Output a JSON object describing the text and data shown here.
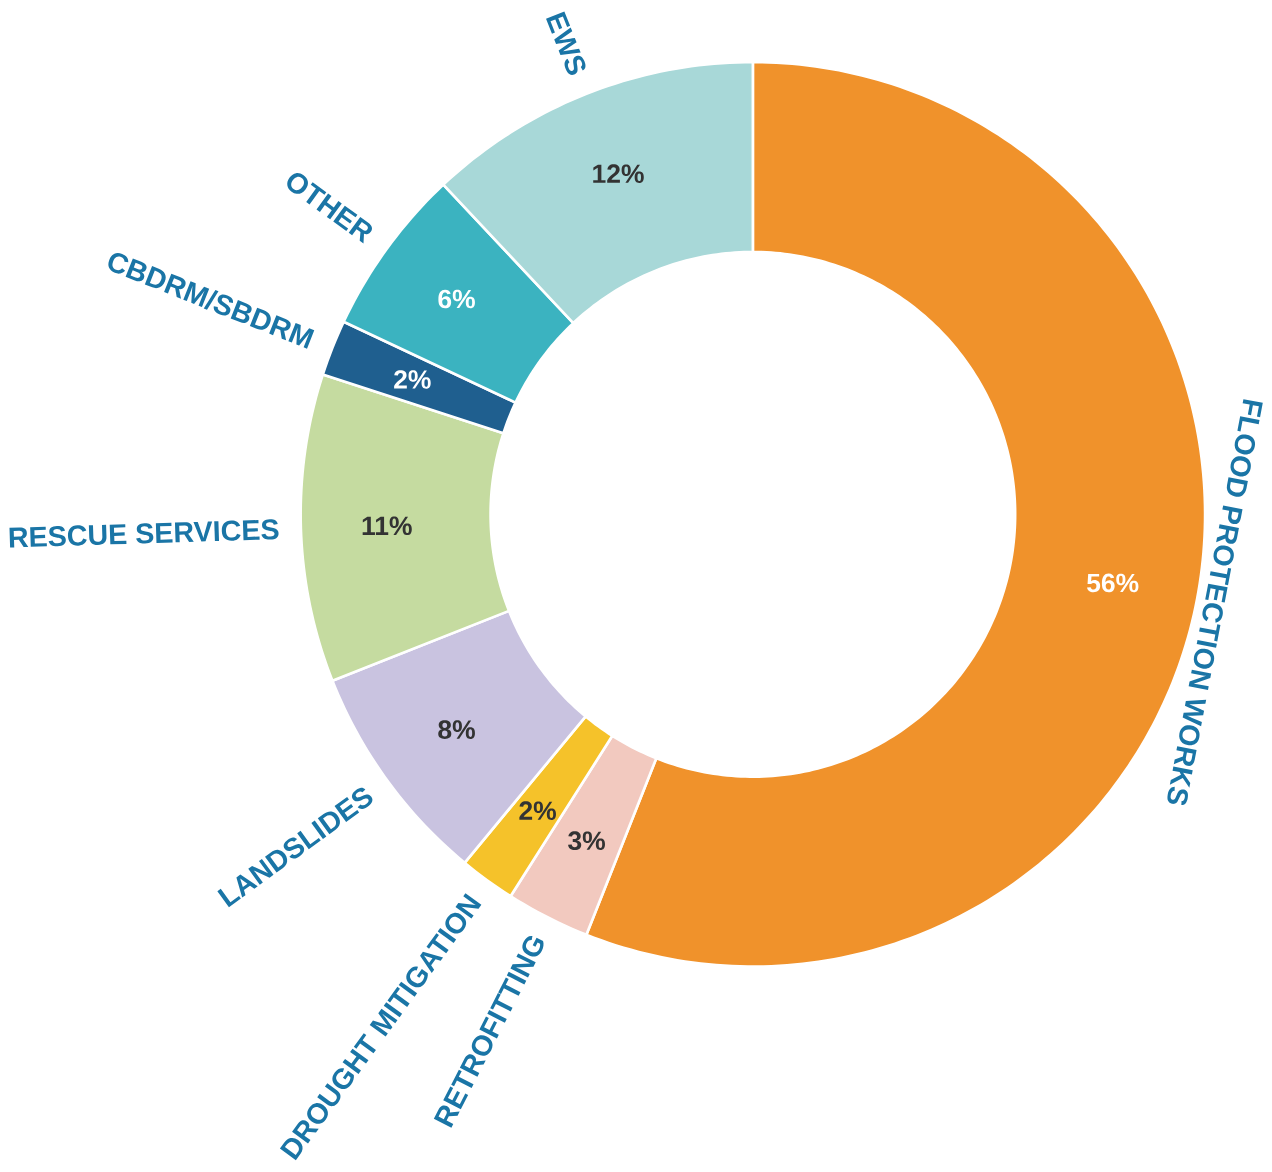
{
  "chart_data": {
    "type": "donut",
    "categories": [
      "FLOOD PROTECTION WORKS",
      "RETROFITTING",
      "DROUGHT MITIGATION",
      "LANDSLIDES",
      "RESCUE SERVICES",
      "CBDRM/SBDRM",
      "OTHER",
      "EWS"
    ],
    "values": [
      56,
      3,
      2,
      8,
      11,
      2,
      6,
      12
    ],
    "colors": [
      "#f0922b",
      "#f2c9bf",
      "#f5c22a",
      "#c9c3e0",
      "#c5dba0",
      "#1f5f8f",
      "#3bb3c0",
      "#a8d8d8"
    ],
    "value_labels": [
      "56%",
      "3%",
      "2%",
      "8%",
      "11%",
      "2%",
      "6%",
      "12%"
    ]
  }
}
